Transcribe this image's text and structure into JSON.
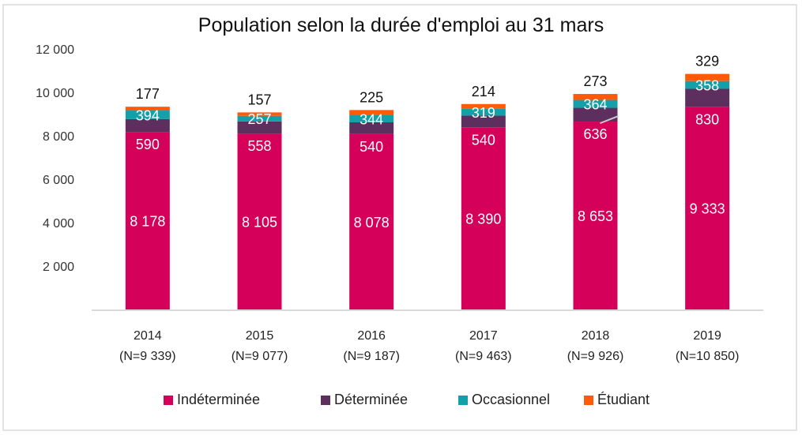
{
  "chart_data": {
    "type": "bar",
    "stacked": true,
    "title": "Population selon la durée d'emploi au 31 mars",
    "xlabel": "",
    "ylabel": "",
    "ylim": [
      0,
      12000
    ],
    "yticks": [
      2000,
      4000,
      6000,
      8000,
      10000,
      12000
    ],
    "ytick_labels": [
      "2 000",
      "4 000",
      "6 000",
      "8 000",
      "10 000",
      "12 000"
    ],
    "grid": false,
    "legend_position": "bottom",
    "categories": [
      {
        "year": "2014",
        "n_label": "(N=9 339)"
      },
      {
        "year": "2015",
        "n_label": "(N=9 077)"
      },
      {
        "year": "2016",
        "n_label": "(N=9 187)"
      },
      {
        "year": "2017",
        "n_label": "(N=9 463)"
      },
      {
        "year": "2018",
        "n_label": "(N=9 926)"
      },
      {
        "year": "2019",
        "n_label": "(N=10 850)"
      }
    ],
    "series": [
      {
        "name": "Indéterminée",
        "color": "#d4005a",
        "label_style": "inside",
        "values": [
          8178,
          8105,
          8078,
          8390,
          8653,
          9333
        ],
        "labels": [
          "8 178",
          "8 105",
          "8 078",
          "8 390",
          "8 653",
          "9 333"
        ]
      },
      {
        "name": "Déterminée",
        "color": "#5c2f5e",
        "label_style": "inside",
        "values": [
          590,
          558,
          540,
          540,
          636,
          830
        ],
        "labels": [
          "590",
          "558",
          "540",
          "540",
          "636",
          "830"
        ]
      },
      {
        "name": "Occasionnel",
        "color": "#13a0a8",
        "label_style": "inside",
        "values": [
          394,
          257,
          344,
          319,
          364,
          358
        ],
        "labels": [
          "394",
          "257",
          "344",
          "319",
          "364",
          "358"
        ]
      },
      {
        "name": "Étudiant",
        "color": "#ff5a0a",
        "label_style": "above",
        "values": [
          177,
          157,
          225,
          214,
          273,
          329
        ],
        "labels": [
          "177",
          "157",
          "225",
          "214",
          "273",
          "329"
        ]
      }
    ]
  }
}
